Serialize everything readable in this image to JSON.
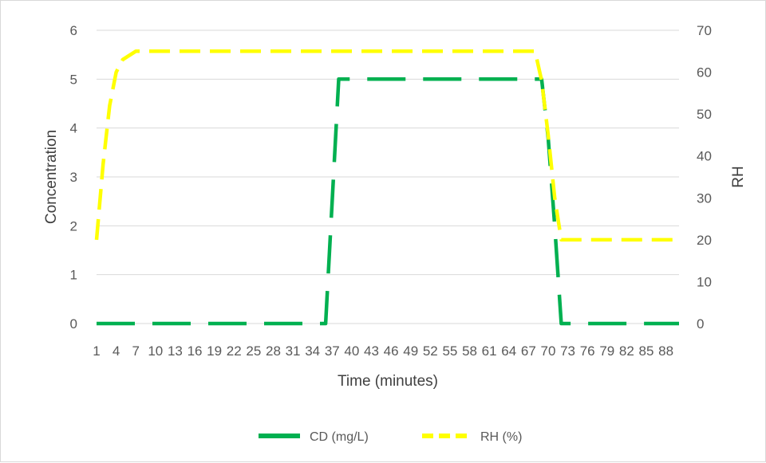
{
  "chart_data": {
    "type": "line",
    "title": "",
    "xlabel": "Time (minutes)",
    "ylabel": "Concentration",
    "y2label": "RH",
    "x_tick_labels": [
      "1",
      "4",
      "7",
      "10",
      "13",
      "16",
      "19",
      "22",
      "25",
      "28",
      "31",
      "34",
      "37",
      "40",
      "43",
      "46",
      "49",
      "52",
      "55",
      "58",
      "61",
      "64",
      "67",
      "70",
      "73",
      "76",
      "79",
      "82",
      "85",
      "88"
    ],
    "x_range": [
      1,
      90
    ],
    "ylim": [
      0,
      6
    ],
    "y_ticks": [
      "0",
      "1",
      "2",
      "3",
      "4",
      "5",
      "6"
    ],
    "y2lim": [
      0,
      70
    ],
    "y2_ticks": [
      "0",
      "10",
      "20",
      "30",
      "40",
      "50",
      "60",
      "70"
    ],
    "grid": true,
    "legend_position": "bottom",
    "series": [
      {
        "name": "CD (mg/L)",
        "axis": "left",
        "color": "#00b050",
        "style": "long-dash",
        "points": [
          [
            1,
            0
          ],
          [
            36,
            0
          ],
          [
            37,
            2.5
          ],
          [
            38,
            5
          ],
          [
            69,
            5
          ],
          [
            70,
            3.8
          ],
          [
            71,
            2.0
          ],
          [
            72,
            0
          ],
          [
            90,
            0
          ]
        ]
      },
      {
        "name": "RH (%)",
        "axis": "right",
        "color": "#ffff00",
        "style": "dash",
        "points": [
          [
            1,
            20
          ],
          [
            2,
            38
          ],
          [
            3,
            52
          ],
          [
            4,
            60
          ],
          [
            5,
            63
          ],
          [
            7,
            65
          ],
          [
            68,
            65
          ],
          [
            69,
            58
          ],
          [
            70,
            45
          ],
          [
            71,
            30
          ],
          [
            72,
            20
          ],
          [
            90,
            20
          ]
        ]
      }
    ]
  }
}
